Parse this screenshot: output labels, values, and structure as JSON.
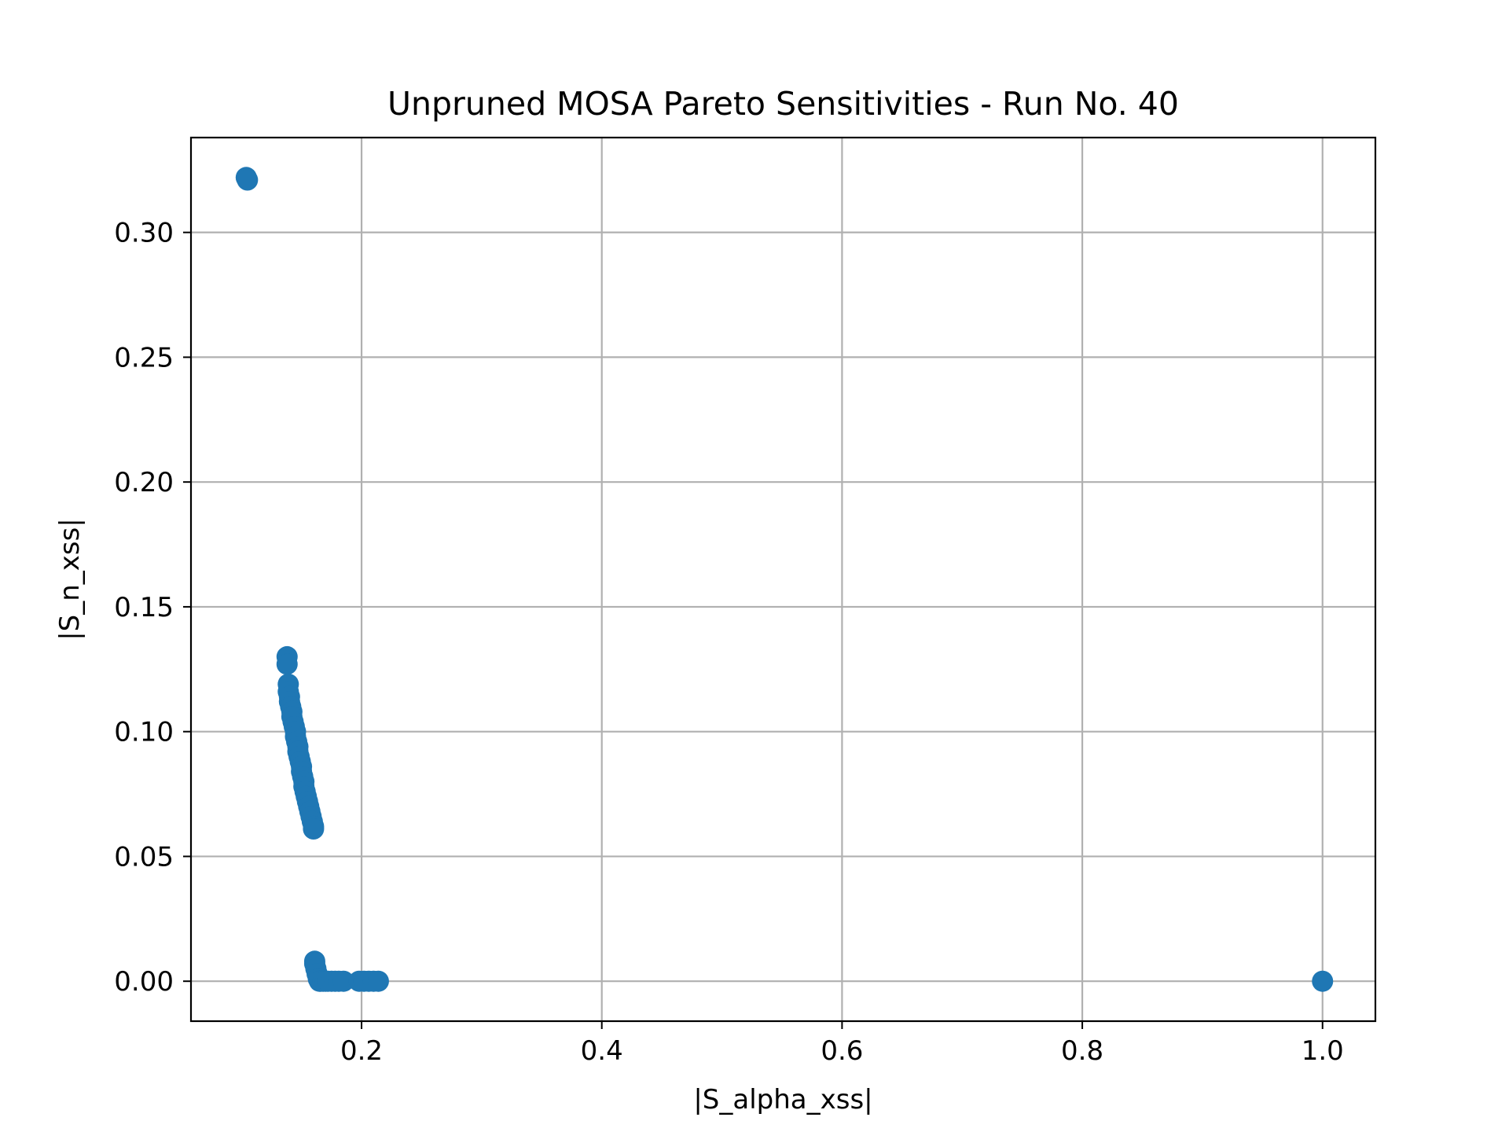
{
  "chart_data": {
    "type": "scatter",
    "title": "Unpruned MOSA Pareto Sensitivities - Run No. 40",
    "xlabel": "|S_alpha_xss|",
    "ylabel": "|S_n_xss|",
    "xlim": [
      0.058,
      1.044
    ],
    "ylim": [
      -0.016,
      0.338
    ],
    "xticks": [
      0.2,
      0.4,
      0.6,
      0.8,
      1.0
    ],
    "xtick_labels": [
      "0.2",
      "0.4",
      "0.6",
      "0.8",
      "1.0"
    ],
    "yticks": [
      0.0,
      0.05,
      0.1,
      0.15,
      0.2,
      0.25,
      0.3
    ],
    "ytick_labels": [
      "0.00",
      "0.05",
      "0.10",
      "0.15",
      "0.20",
      "0.25",
      "0.30"
    ],
    "grid": true,
    "marker_color": "#1f77b4",
    "series": [
      {
        "x": [
          0.104,
          0.105,
          0.138,
          0.138,
          0.139,
          0.139,
          0.14,
          0.14,
          0.141,
          0.142,
          0.142,
          0.143,
          0.144,
          0.145,
          0.145,
          0.146,
          0.147,
          0.147,
          0.148,
          0.149,
          0.15,
          0.15,
          0.151,
          0.152,
          0.152,
          0.153,
          0.154,
          0.155,
          0.156,
          0.157,
          0.158,
          0.159,
          0.16,
          0.16,
          0.161,
          0.161,
          0.162,
          0.163,
          0.164,
          0.165,
          0.166,
          0.168,
          0.17,
          0.172,
          0.175,
          0.178,
          0.181,
          0.185,
          0.198,
          0.202,
          0.206,
          0.21,
          0.214,
          1.0
        ],
        "y": [
          0.322,
          0.321,
          0.13,
          0.127,
          0.119,
          0.116,
          0.114,
          0.112,
          0.11,
          0.108,
          0.106,
          0.104,
          0.102,
          0.1,
          0.098,
          0.096,
          0.094,
          0.092,
          0.09,
          0.088,
          0.086,
          0.084,
          0.082,
          0.08,
          0.078,
          0.076,
          0.074,
          0.072,
          0.07,
          0.068,
          0.066,
          0.064,
          0.062,
          0.061,
          0.008,
          0.007,
          0.005,
          0.003,
          0.001,
          0.0,
          0.0,
          0.0,
          0.0,
          0.0,
          0.0,
          0.0,
          0.0,
          0.0,
          0.0,
          0.0,
          0.0,
          0.0,
          0.0,
          0.0
        ]
      }
    ]
  }
}
